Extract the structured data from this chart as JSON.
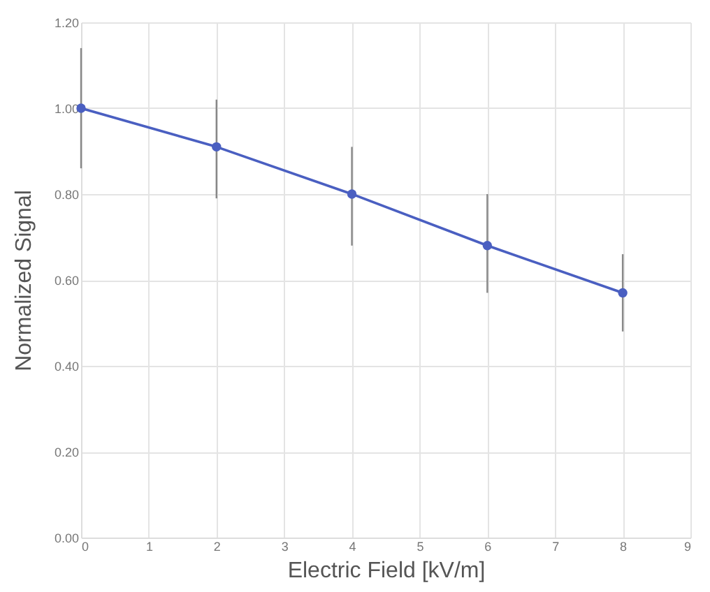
{
  "chart_data": {
    "type": "line",
    "xlabel": "Electric Field [kV/m]",
    "ylabel": "Normalized Signal",
    "x": [
      0,
      2,
      4,
      6,
      8
    ],
    "series": [
      {
        "color": "#4a5fc1",
        "values": [
          1.0,
          0.91,
          0.8,
          0.68,
          0.57
        ],
        "errors": [
          [
            0.86,
            1.14
          ],
          [
            0.79,
            1.02
          ],
          [
            0.68,
            0.91
          ],
          [
            0.57,
            0.8
          ],
          [
            0.48,
            0.66
          ]
        ]
      }
    ],
    "xlim": [
      0,
      9
    ],
    "xticks": [
      0,
      1,
      2,
      3,
      4,
      5,
      6,
      7,
      8,
      9
    ],
    "ylim": [
      0,
      1.2
    ],
    "yticks": [
      {
        "value": 0,
        "label": "0.00"
      },
      {
        "value": 0.2,
        "label": "0.20"
      },
      {
        "value": 0.4,
        "label": "0.40"
      },
      {
        "value": 0.6,
        "label": "0.60"
      },
      {
        "value": 0.8,
        "label": "0.80"
      },
      {
        "value": 1.0,
        "label": "1.00"
      },
      {
        "value": 1.2,
        "label": "1.20"
      }
    ],
    "grid": true,
    "marker": "circle",
    "line_style": "solid"
  }
}
